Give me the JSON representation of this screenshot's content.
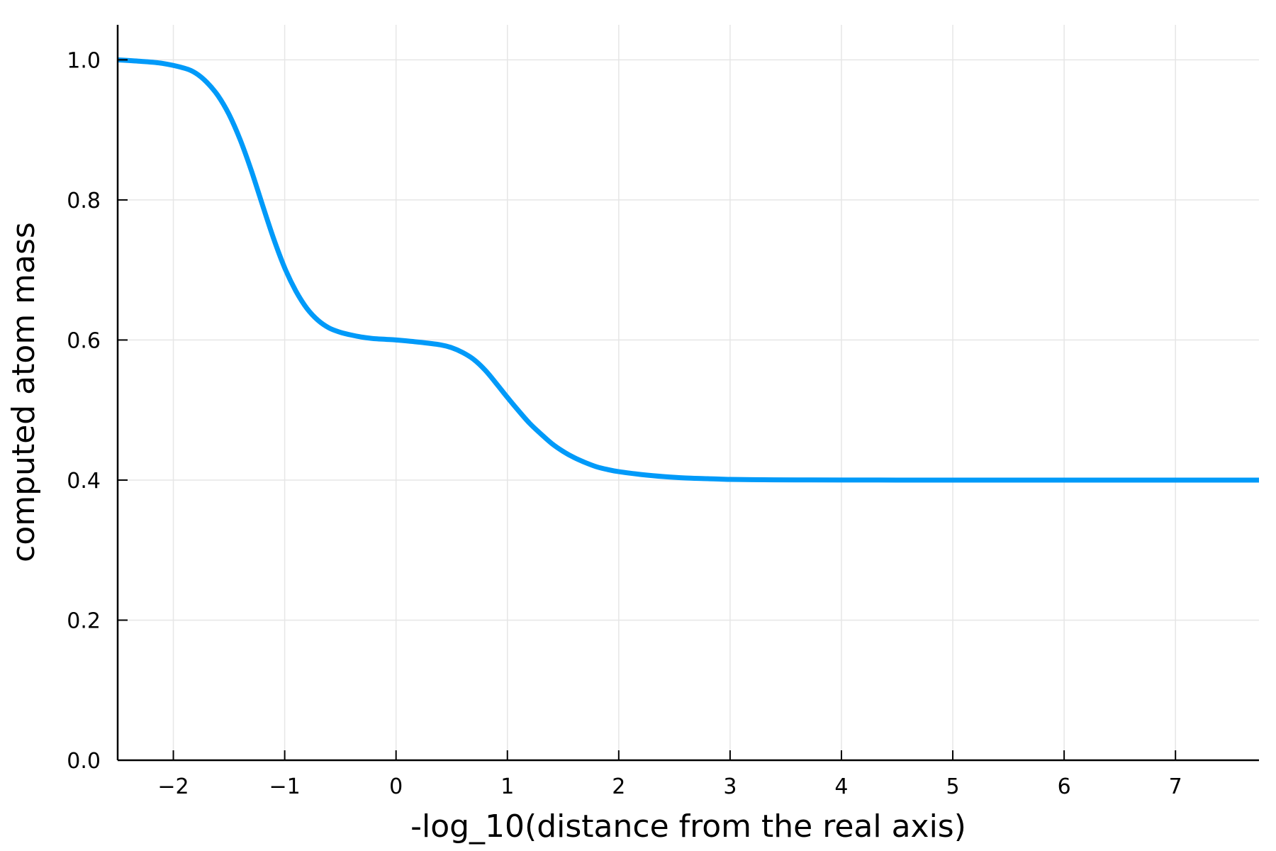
{
  "chart_data": {
    "type": "line",
    "title": "",
    "xlabel": "-log_10(distance from the real axis)",
    "ylabel": "computed atom mass",
    "xlim": [
      -2.5,
      7.75
    ],
    "ylim": [
      0.0,
      1.05
    ],
    "x_ticks": [
      -2,
      -1,
      0,
      1,
      2,
      3,
      4,
      5,
      6,
      7
    ],
    "x_tick_labels": [
      "−2",
      "−1",
      "0",
      "1",
      "2",
      "3",
      "4",
      "5",
      "6",
      "7"
    ],
    "y_ticks": [
      0.0,
      0.2,
      0.4,
      0.6,
      0.8,
      1.0
    ],
    "y_tick_labels": [
      "0.0",
      "0.2",
      "0.4",
      "0.6",
      "0.8",
      "1.0"
    ],
    "grid": true,
    "legend": "none",
    "colors": {
      "line": "#009af9",
      "axis": "#000000",
      "grid": "#e6e6e6"
    },
    "series": [
      {
        "x": [
          -2.5,
          -2.3,
          -2.1,
          -1.9,
          -1.8,
          -1.7,
          -1.6,
          -1.5,
          -1.4,
          -1.3,
          -1.2,
          -1.1,
          -1.0,
          -0.9,
          -0.8,
          -0.7,
          -0.6,
          -0.5,
          -0.4,
          -0.3,
          -0.2,
          -0.1,
          0.0,
          0.2,
          0.4,
          0.5,
          0.6,
          0.7,
          0.8,
          0.9,
          1.0,
          1.1,
          1.2,
          1.3,
          1.4,
          1.5,
          1.6,
          1.7,
          1.8,
          1.9,
          2.0,
          2.2,
          2.4,
          2.6,
          2.8,
          3.0,
          3.3,
          3.6,
          4.0,
          4.5,
          5.0,
          6.0,
          7.0,
          7.75
        ],
        "y": [
          1.0,
          0.998,
          0.995,
          0.988,
          0.981,
          0.968,
          0.949,
          0.922,
          0.886,
          0.842,
          0.793,
          0.745,
          0.703,
          0.67,
          0.645,
          0.628,
          0.617,
          0.611,
          0.607,
          0.604,
          0.602,
          0.601,
          0.6,
          0.597,
          0.593,
          0.589,
          0.582,
          0.572,
          0.557,
          0.538,
          0.518,
          0.499,
          0.481,
          0.466,
          0.452,
          0.441,
          0.432,
          0.425,
          0.419,
          0.415,
          0.412,
          0.408,
          0.405,
          0.403,
          0.402,
          0.401,
          0.4005,
          0.4003,
          0.4001,
          0.4,
          0.4,
          0.4,
          0.4,
          0.4
        ]
      }
    ]
  }
}
